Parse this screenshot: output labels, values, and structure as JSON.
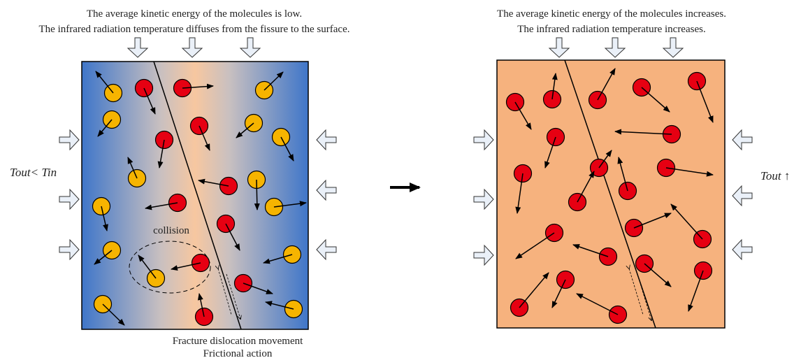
{
  "left_panel": {
    "caption": [
      "The average kinetic energy of the molecules is low.",
      "The infrared radiation temperature diffuses from the fissure to the surface."
    ],
    "collision_label": "collision",
    "fracture_label": [
      "Fracture dislocation movement",
      "Frictional action"
    ],
    "condition": "Tout< Tin"
  },
  "right_panel": {
    "caption": [
      "The average kinetic energy of the molecules increases.",
      "The infrared radiation temperature increases."
    ],
    "condition": "Tout ↑"
  }
}
